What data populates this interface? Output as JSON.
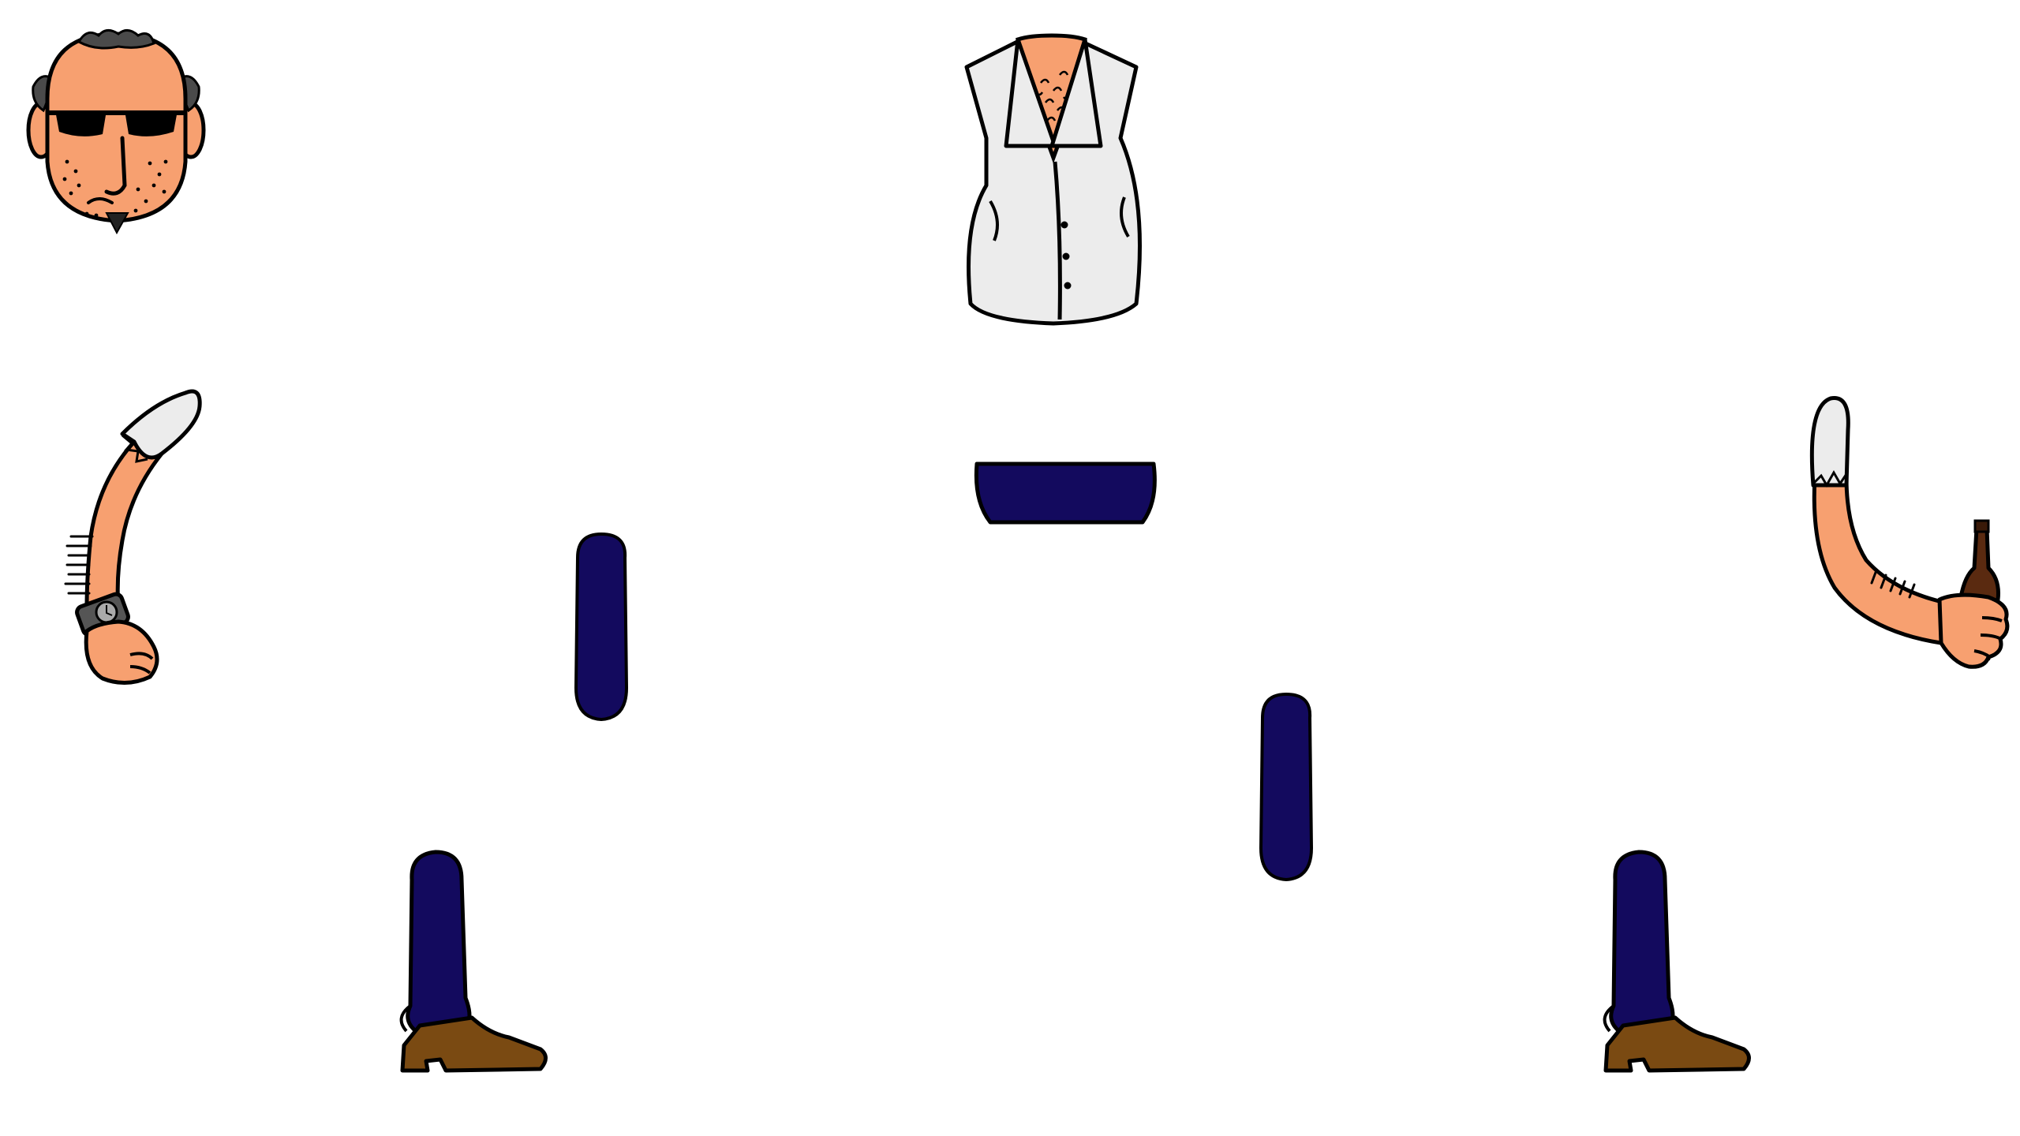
{
  "sprite_sheet": {
    "background_color": "#ffffff",
    "palette": {
      "outline": "#000000",
      "skin": "#f7a070",
      "shirt": "#ececec",
      "trousers": "#130a5e",
      "boot": "#7a4a12",
      "hair": "#4a4a4a",
      "glasses": "#000000",
      "bottle": "#5a2a10",
      "watch": "#555555"
    },
    "parts": [
      {
        "id": "head",
        "icon": "head-sunglasses-goatee-icon",
        "interactable": true
      },
      {
        "id": "torso",
        "icon": "torso-white-shirt-icon",
        "interactable": true
      },
      {
        "id": "pelvis",
        "icon": "pelvis-trousers-icon",
        "interactable": true
      },
      {
        "id": "left-arm",
        "icon": "arm-with-watch-icon",
        "interactable": true
      },
      {
        "id": "right-arm",
        "icon": "arm-holding-bottle-icon",
        "interactable": true
      },
      {
        "id": "left-thigh",
        "icon": "thigh-trousers-icon",
        "interactable": true
      },
      {
        "id": "right-thigh",
        "icon": "thigh-trousers-icon",
        "interactable": true
      },
      {
        "id": "left-shin",
        "icon": "shin-with-boot-icon",
        "interactable": true
      },
      {
        "id": "right-shin",
        "icon": "shin-with-boot-icon",
        "interactable": true
      }
    ]
  }
}
